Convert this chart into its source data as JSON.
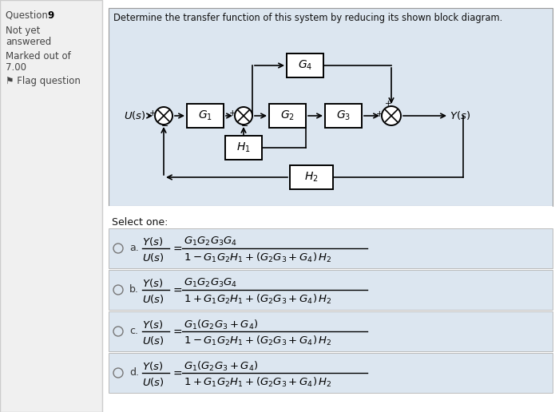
{
  "title": "Determine the transfer function of this system by reducing its shown block diagram.",
  "q_label": "Question",
  "q_num": "9",
  "q_sub1": "Not yet",
  "q_sub2": "answered",
  "q_sub3": "Marked out of",
  "q_sub4": "7.00",
  "q_sub5": "⚑ Flag question",
  "select_one": "Select one:",
  "options": [
    {
      "label": "a.",
      "num_tex": "$G_1 G_2 G_3 G_4$",
      "den_tex": "$1 - G_1 G_2 H_1 + (G_2 G_3 + G_4)\\,H_2$"
    },
    {
      "label": "b.",
      "num_tex": "$G_1 G_2 G_3 G_4$",
      "den_tex": "$1 + G_1 G_2 H_1 + (G_2 G_3 + G_4)\\,H_2$"
    },
    {
      "label": "c.",
      "num_tex": "$G_1 (G_2 G_3 + G_4)$",
      "den_tex": "$1 - G_1 G_2 H_1 + (G_2 G_3 + G_4)\\,H_2$"
    },
    {
      "label": "d.",
      "num_tex": "$G_1 (G_2 G_3 + G_4)$",
      "den_tex": "$1 + G_1 G_2 H_1 + (G_2 G_3 + G_4)\\,H_2$"
    }
  ],
  "bg_color": "#ffffff",
  "left_panel_bg": "#f0f0f0",
  "diagram_bg": "#dce6f0",
  "option_bg": "#dce6f0",
  "border_color": "#bbbbbb",
  "left_border_color": "#cccccc",
  "diagram_border_color": "#999999"
}
